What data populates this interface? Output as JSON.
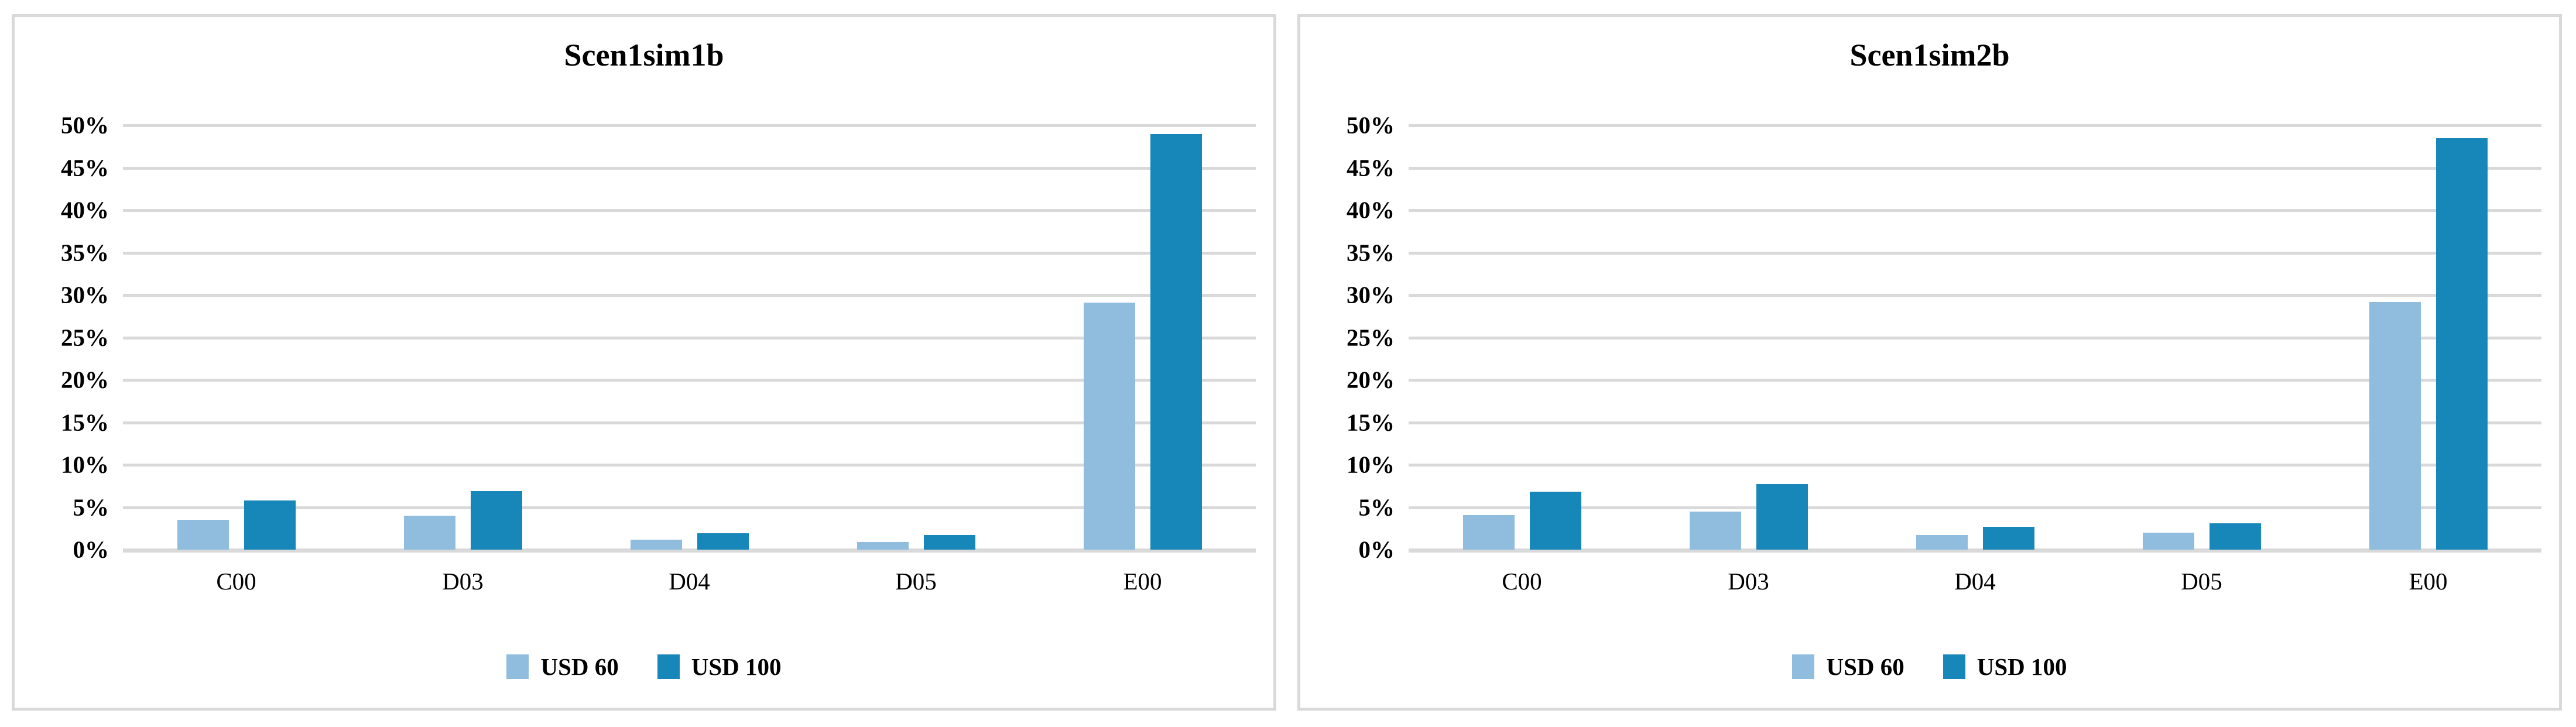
{
  "colors": {
    "light": "#90bcde",
    "dark": "#1786b8",
    "gridline": "#d9d9d9",
    "text": "#000000"
  },
  "axis": {
    "max": 50,
    "ticks": [
      "0%",
      "5%",
      "10%",
      "15%",
      "20%",
      "25%",
      "30%",
      "35%",
      "40%",
      "45%",
      "50%"
    ]
  },
  "chart_data": [
    {
      "type": "bar",
      "title": "Scen1sim1b",
      "categories": [
        "C00",
        "D03",
        "D04",
        "D05",
        "E00"
      ],
      "series": [
        {
          "name": "USD 60",
          "color": "light",
          "values": [
            3.5,
            4.0,
            1.2,
            0.9,
            29.1
          ]
        },
        {
          "name": "USD 100",
          "color": "dark",
          "values": [
            5.8,
            6.9,
            1.9,
            1.7,
            49.0
          ]
        }
      ],
      "ylabel": "",
      "xlabel": "",
      "ylim": [
        0,
        50
      ],
      "grid": true,
      "legend_position": "bottom"
    },
    {
      "type": "bar",
      "title": "Scen1sim2b",
      "categories": [
        "C00",
        "D03",
        "D04",
        "D05",
        "E00"
      ],
      "series": [
        {
          "name": "USD 60",
          "color": "light",
          "values": [
            4.1,
            4.5,
            1.7,
            2.0,
            29.2
          ]
        },
        {
          "name": "USD 100",
          "color": "dark",
          "values": [
            6.8,
            7.7,
            2.7,
            3.1,
            48.5
          ]
        }
      ],
      "ylabel": "",
      "xlabel": "",
      "ylim": [
        0,
        50
      ],
      "grid": true,
      "legend_position": "bottom"
    }
  ]
}
